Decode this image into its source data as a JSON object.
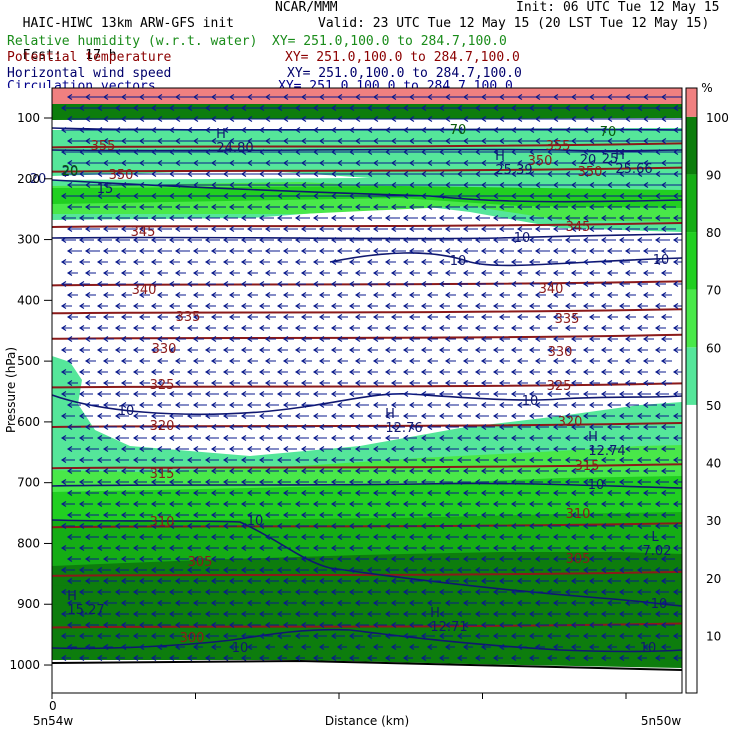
{
  "header": {
    "model": "HAIC-HIWC 13km ARW-GFS init",
    "org": "NCAR/MMM",
    "init": "Init: 06 UTC Tue 12 May 15",
    "fcst": "Fcst:   17 h",
    "valid": "Valid: 23 UTC Tue 12 May 15 (20 LST Tue 12 May 15)"
  },
  "legend": [
    {
      "name": "Relative humidity (w.r.t. water)",
      "xy": "XY= 251.0,100.0 to 284.7,100.0",
      "color": "#1a8c1a"
    },
    {
      "name": "Potential temperature",
      "xy": "XY= 251.0,100.0 to 284.7,100.0",
      "color": "#8b0000"
    },
    {
      "name": "Horizontal wind speed",
      "xy": "XY= 251.0,100.0 to 284.7,100.0",
      "color": "#00006b"
    },
    {
      "name": "Circulation vectors",
      "xy": "XY= 251.0,100.0 to 284.7,100.0",
      "color": "#00008b"
    }
  ],
  "chart_data": {
    "type": "cross-section",
    "ylabel": "Pressure (hPa)",
    "xlabel": "Distance (km)",
    "y_ticks": [
      100,
      200,
      300,
      400,
      500,
      600,
      700,
      800,
      900,
      1000
    ],
    "ylim": [
      1050,
      75
    ],
    "x_start_tick": "0",
    "x_left_label": "5n54w",
    "x_right_label": "5n50w",
    "colorbar": {
      "unit": "%",
      "ticks": [
        10,
        20,
        30,
        40,
        50,
        60,
        70,
        80,
        90,
        100
      ],
      "bins": [
        {
          "range": [
            0,
            50
          ],
          "color": "#ffffff"
        },
        {
          "range": [
            50,
            60
          ],
          "color": "#55e69a"
        },
        {
          "range": [
            60,
            70
          ],
          "color": "#49e849"
        },
        {
          "range": [
            70,
            80
          ],
          "color": "#21cf21"
        },
        {
          "range": [
            80,
            90
          ],
          "color": "#15ad15"
        },
        {
          "range": [
            90,
            100
          ],
          "color": "#0d7d0d"
        },
        {
          "range": [
            100,
            105
          ],
          "color": "#f08080"
        }
      ]
    },
    "theta_contours": [
      {
        "label": "300",
        "p": 935
      },
      {
        "label": "305",
        "p": 850
      },
      {
        "label": "310",
        "p": 770
      },
      {
        "label": "315",
        "p": 673
      },
      {
        "label": "320",
        "p": 605
      },
      {
        "label": "325",
        "p": 540
      },
      {
        "label": "330",
        "p": 460
      },
      {
        "label": "335",
        "p": 418
      },
      {
        "label": "340",
        "p": 372
      },
      {
        "label": "345",
        "p": 276
      },
      {
        "label": "350",
        "p": 185
      },
      {
        "label": "355",
        "p": 145
      }
    ],
    "wind_labels": [
      "10",
      "10",
      "10",
      "10",
      "10",
      "10",
      "10",
      "10",
      "10",
      "10",
      "15",
      "20",
      "20",
      "20",
      "25"
    ],
    "highs": [
      {
        "label": "H",
        "value": "15.27"
      },
      {
        "label": "H",
        "value": "12.71"
      },
      {
        "label": "H",
        "value": "12.76"
      },
      {
        "label": "H",
        "value": "12.74"
      },
      {
        "label": "H",
        "value": "24.80"
      },
      {
        "label": "H",
        "value": "25.39"
      },
      {
        "label": "H",
        "value": "25.66"
      }
    ],
    "lows": [
      {
        "label": "L",
        "value": "7.02"
      }
    ],
    "rh_labels": [
      "70",
      "70",
      "20"
    ]
  }
}
